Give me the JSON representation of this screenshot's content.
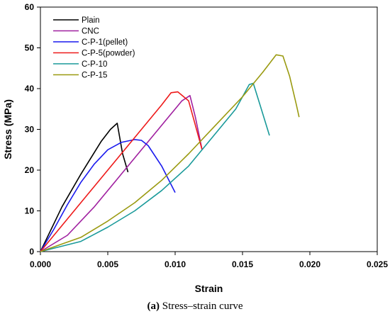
{
  "chart_data": {
    "type": "line",
    "xlabel": "Strain",
    "ylabel": "Stress (MPa)",
    "xlim": [
      0,
      0.025
    ],
    "ylim": [
      0,
      60
    ],
    "xticks": [
      "0.000",
      "0.005",
      "0.010",
      "0.015",
      "0.020",
      "0.025"
    ],
    "xtick_values": [
      0,
      0.005,
      0.01,
      0.015,
      0.02,
      0.025
    ],
    "yticks": [
      "0",
      "10",
      "20",
      "30",
      "40",
      "50",
      "60"
    ],
    "ytick_values": [
      0,
      10,
      20,
      30,
      40,
      50,
      60
    ],
    "grid": false,
    "legend_position": "top-left",
    "series": [
      {
        "name": "Plain",
        "color": "#000000",
        "x": [
          0,
          0.0016,
          0.003,
          0.0045,
          0.0052,
          0.0057,
          0.0061,
          0.0065
        ],
        "y": [
          0,
          11,
          19,
          27,
          30,
          31.5,
          24,
          19.5
        ]
      },
      {
        "name": "CNC",
        "color": "#a020a0",
        "x": [
          0,
          0.002,
          0.004,
          0.006,
          0.008,
          0.0095,
          0.0105,
          0.0111,
          0.0115,
          0.012
        ],
        "y": [
          0,
          4,
          11,
          19,
          27,
          33,
          37,
          38.3,
          33,
          25
        ]
      },
      {
        "name": "C-P-1(pellet)",
        "color": "#1a1aee",
        "x": [
          0,
          0.001,
          0.002,
          0.003,
          0.004,
          0.005,
          0.006,
          0.007,
          0.0075,
          0.008,
          0.009,
          0.01
        ],
        "y": [
          0,
          5.5,
          11.5,
          17,
          21.5,
          25,
          26.8,
          27.5,
          27.3,
          26,
          21,
          14.5
        ]
      },
      {
        "name": "C-P-5(powder)",
        "color": "#ee1a1a",
        "x": [
          0,
          0.002,
          0.004,
          0.006,
          0.008,
          0.009,
          0.0097,
          0.0102,
          0.011,
          0.0115,
          0.012
        ],
        "y": [
          0,
          8,
          16,
          24,
          32,
          36,
          39,
          39.2,
          37,
          31,
          25
        ]
      },
      {
        "name": "C-P-10",
        "color": "#1a9a9a",
        "x": [
          0,
          0.003,
          0.005,
          0.007,
          0.009,
          0.011,
          0.013,
          0.0145,
          0.0155,
          0.0158,
          0.0163,
          0.017
        ],
        "y": [
          0,
          2.5,
          6,
          10,
          15,
          21,
          29,
          35,
          41,
          41.3,
          36,
          28.5
        ]
      },
      {
        "name": "C-P-15",
        "color": "#9a9a10",
        "x": [
          0,
          0.003,
          0.005,
          0.007,
          0.009,
          0.011,
          0.013,
          0.015,
          0.0165,
          0.0175,
          0.018,
          0.0185,
          0.019,
          0.0192
        ],
        "y": [
          0,
          3.5,
          7.5,
          12,
          17.5,
          24,
          31,
          38,
          44,
          48.3,
          48,
          43,
          36,
          33
        ]
      }
    ]
  },
  "caption": {
    "label": "(a)",
    "text": "Stress–strain curve"
  }
}
